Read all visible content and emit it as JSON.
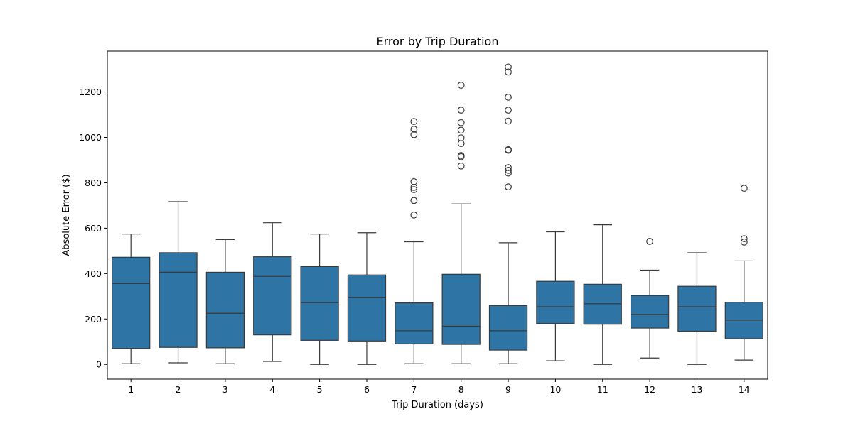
{
  "chart_data": {
    "type": "box",
    "title": "Error by Trip Duration",
    "xlabel": "Trip Duration (days)",
    "ylabel": "Absolute Error ($)",
    "ylim": [
      -65,
      1380
    ],
    "yticks": [
      0,
      200,
      400,
      600,
      800,
      1000,
      1200
    ],
    "box_color": "#2e75a6",
    "line_color": "#3a3a3a",
    "categories": [
      "1",
      "2",
      "3",
      "4",
      "5",
      "6",
      "7",
      "8",
      "9",
      "10",
      "11",
      "12",
      "13",
      "14"
    ],
    "boxes": [
      {
        "category": "1",
        "whislo": 3,
        "q1": 70,
        "med": 356,
        "q3": 472,
        "whishi": 574,
        "fliers": []
      },
      {
        "category": "2",
        "whislo": 7,
        "q1": 75,
        "med": 406,
        "q3": 492,
        "whishi": 717,
        "fliers": []
      },
      {
        "category": "3",
        "whislo": 3,
        "q1": 73,
        "med": 225,
        "q3": 406,
        "whishi": 550,
        "fliers": []
      },
      {
        "category": "4",
        "whislo": 13,
        "q1": 130,
        "med": 388,
        "q3": 474,
        "whishi": 624,
        "fliers": []
      },
      {
        "category": "5",
        "whislo": 0,
        "q1": 106,
        "med": 272,
        "q3": 431,
        "whishi": 574,
        "fliers": []
      },
      {
        "category": "6",
        "whislo": 0,
        "q1": 103,
        "med": 294,
        "q3": 394,
        "whishi": 580,
        "fliers": []
      },
      {
        "category": "7",
        "whislo": 3,
        "q1": 90,
        "med": 148,
        "q3": 271,
        "whishi": 540,
        "fliers": [
          658,
          722,
          770,
          780,
          805,
          1012,
          1036,
          1070
        ]
      },
      {
        "category": "8",
        "whislo": 3,
        "q1": 88,
        "med": 168,
        "q3": 397,
        "whishi": 707,
        "fliers": [
          874,
          915,
          920,
          973,
          998,
          1032,
          1065,
          1120,
          1230
        ]
      },
      {
        "category": "9",
        "whislo": 3,
        "q1": 63,
        "med": 148,
        "q3": 259,
        "whishi": 536,
        "fliers": [
          782,
          843,
          855,
          867,
          943,
          946,
          1072,
          1120,
          1177,
          1288,
          1310
        ]
      },
      {
        "category": "10",
        "whislo": 16,
        "q1": 180,
        "med": 254,
        "q3": 366,
        "whishi": 584,
        "fliers": []
      },
      {
        "category": "11",
        "whislo": 0,
        "q1": 177,
        "med": 267,
        "q3": 353,
        "whishi": 615,
        "fliers": []
      },
      {
        "category": "12",
        "whislo": 28,
        "q1": 160,
        "med": 220,
        "q3": 303,
        "whishi": 415,
        "fliers": [
          542
        ]
      },
      {
        "category": "13",
        "whislo": 0,
        "q1": 146,
        "med": 254,
        "q3": 344,
        "whishi": 492,
        "fliers": []
      },
      {
        "category": "14",
        "whislo": 19,
        "q1": 113,
        "med": 195,
        "q3": 274,
        "whishi": 456,
        "fliers": [
          539,
          554,
          776
        ]
      }
    ]
  }
}
